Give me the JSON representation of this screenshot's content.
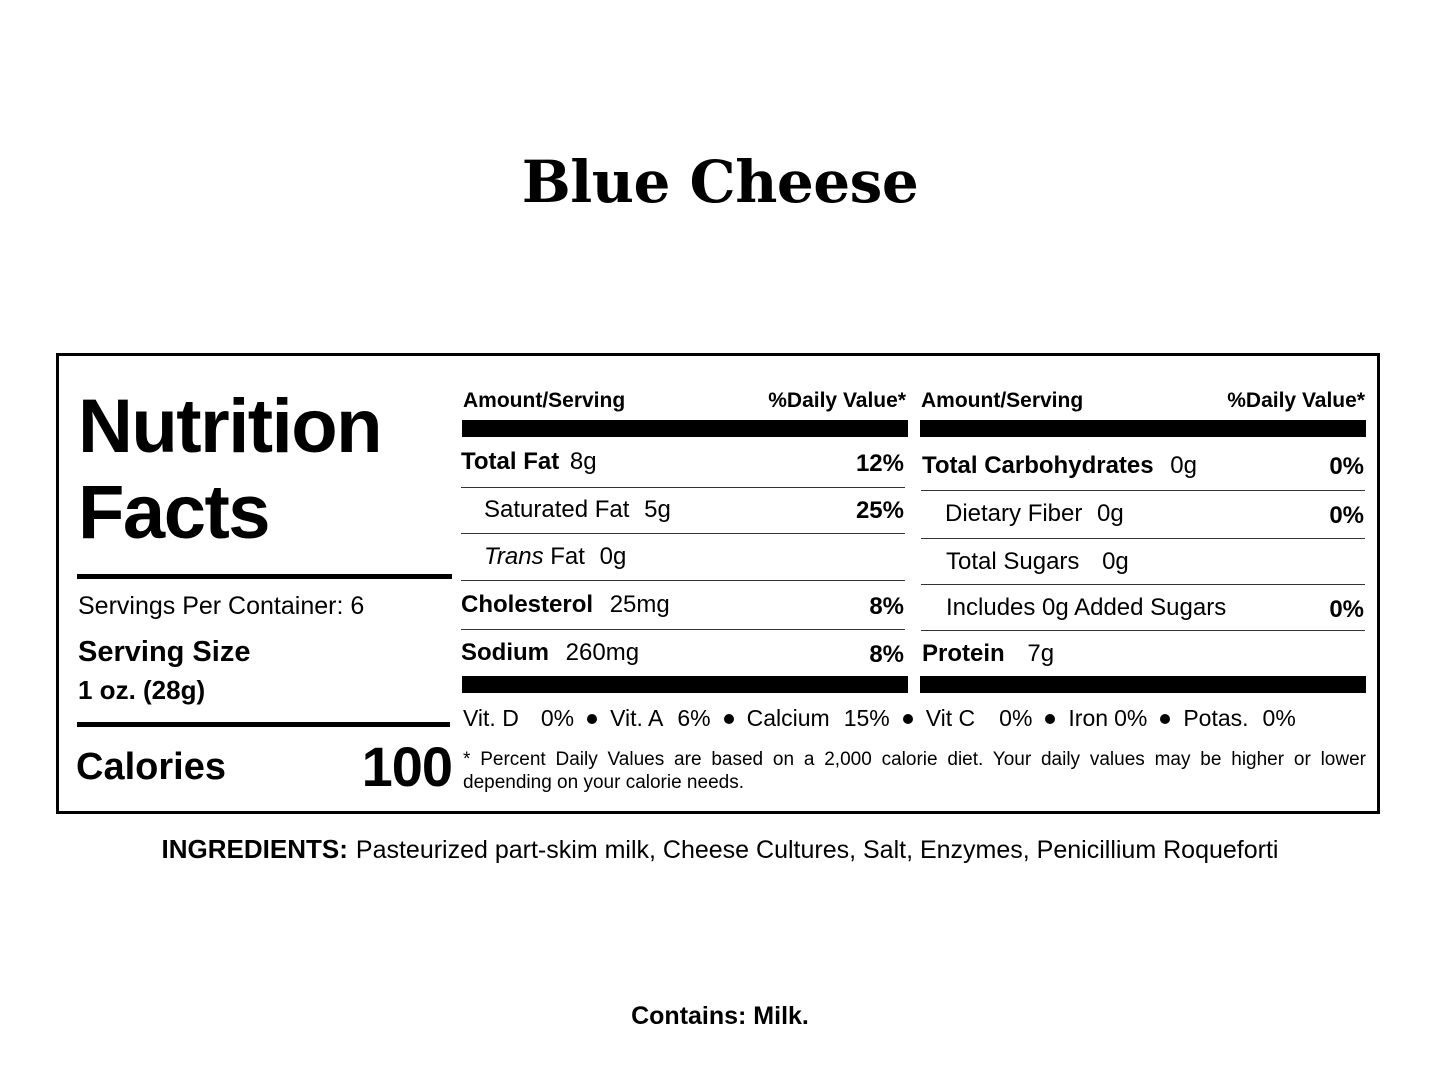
{
  "product_name": "Blue Cheese",
  "panel": {
    "title_line1": "Nutrition",
    "title_line2": "Facts",
    "servings_per_container": "Servings Per Container: 6",
    "serving_size_label": "Serving Size",
    "serving_size_value": "1 oz. (28g)",
    "calories_label": "Calories",
    "calories_value": "100"
  },
  "left_table": {
    "header_amount": "Amount/Serving",
    "header_dv": "%Daily Value*",
    "rows": [
      {
        "name": "Total Fat",
        "amount": "8g",
        "dv": "12%",
        "bold": true
      },
      {
        "name": "Saturated Fat",
        "amount": "5g",
        "dv": "25%",
        "bold": false
      },
      {
        "name_italic": "Trans",
        "name": "Fat",
        "amount": "0g",
        "dv": "",
        "bold": false
      },
      {
        "name": "Cholesterol",
        "amount": "25mg",
        "dv": "8%",
        "bold": true
      },
      {
        "name": "Sodium",
        "amount": "260mg",
        "dv": "8%",
        "bold": true
      }
    ]
  },
  "right_table": {
    "header_amount": "Amount/Serving",
    "header_dv": "%Daily Value*",
    "rows": [
      {
        "name": "Total Carbohydrates",
        "amount": "0g",
        "dv": "0%",
        "bold": true
      },
      {
        "name": "Dietary Fiber",
        "amount": "0g",
        "dv": "0%",
        "bold": false
      },
      {
        "name": "Total Sugars",
        "amount": "0g",
        "dv": "",
        "bold": false
      },
      {
        "name": "Includes 0g Added Sugars",
        "amount": "",
        "dv": "0%",
        "bold": false
      },
      {
        "name": "Protein",
        "amount": "7g",
        "dv": "",
        "bold": true
      }
    ]
  },
  "vitamins": [
    {
      "name": "Vit. D",
      "value": "0%"
    },
    {
      "name": "Vit. A",
      "value": "6%"
    },
    {
      "name": "Calcium",
      "value": "15%"
    },
    {
      "name": "Vit C",
      "value": "0%"
    },
    {
      "name": "Iron",
      "value": "0%"
    },
    {
      "name": "Potas.",
      "value": "0%"
    }
  ],
  "footnote": "* Percent Daily Values are based on a 2,000 calorie diet. Your daily values may be higher or lower depending on your calorie needs.",
  "ingredients": {
    "label": "INGREDIENTS:",
    "text": "Pasteurized part-skim milk, Cheese Cultures, Salt, Enzymes, Penicillium Roqueforti"
  },
  "contains": "Contains:  Milk."
}
